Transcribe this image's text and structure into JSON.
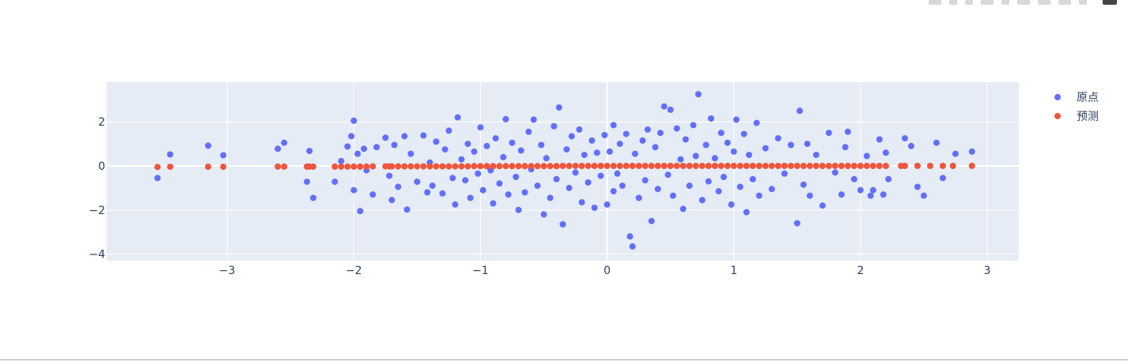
{
  "modebar": {
    "buttons": [
      "camera-icon",
      "zoom-icon",
      "pan-icon",
      "box-select-icon",
      "lasso-icon",
      "zoom-in-icon",
      "zoom-out-icon",
      "autoscale-icon",
      "reset-axes-icon",
      "plotly-logo-icon"
    ]
  },
  "colors": {
    "plot_bg": "#e5ecf6",
    "grid": "#ffffff",
    "series_1": "#636efa",
    "series_2": "#ef553b",
    "tick_text": "#2a3f5f"
  },
  "chart_data": {
    "type": "scatter",
    "title": "",
    "xlabel": "",
    "ylabel": "",
    "xlim": [
      -3.95,
      3.25
    ],
    "ylim": [
      -4.3,
      3.8
    ],
    "x_ticks": [
      -3,
      -2,
      -1,
      0,
      1,
      2,
      3
    ],
    "x_tick_labels": [
      "−3",
      "−2",
      "−1",
      "0",
      "1",
      "2",
      "3"
    ],
    "y_ticks": [
      2,
      0,
      -2,
      -4
    ],
    "y_tick_labels": [
      "2",
      "0",
      "−2",
      "−4"
    ],
    "grid": true,
    "legend_position": "top-right",
    "legend": [
      "原点",
      "预测"
    ],
    "series": [
      {
        "name": "原点",
        "color": "#636efa",
        "points": [
          [
            -3.55,
            -0.55
          ],
          [
            -3.45,
            0.52
          ],
          [
            -3.15,
            0.92
          ],
          [
            -3.03,
            0.48
          ],
          [
            -2.6,
            0.78
          ],
          [
            -2.55,
            1.05
          ],
          [
            -2.37,
            -0.72
          ],
          [
            -2.35,
            0.68
          ],
          [
            -2.32,
            -1.45
          ],
          [
            -2.15,
            -0.72
          ],
          [
            -2.1,
            0.22
          ],
          [
            -2.05,
            0.88
          ],
          [
            -2.02,
            1.35
          ],
          [
            -2.0,
            -1.1
          ],
          [
            -2.0,
            2.05
          ],
          [
            -1.97,
            0.55
          ],
          [
            -1.95,
            -2.05
          ],
          [
            -1.92,
            0.78
          ],
          [
            -1.9,
            -0.2
          ],
          [
            -1.85,
            -1.3
          ],
          [
            -1.82,
            0.85
          ],
          [
            -1.75,
            1.28
          ],
          [
            -1.72,
            -0.45
          ],
          [
            -1.7,
            -1.55
          ],
          [
            -1.68,
            0.95
          ],
          [
            -1.65,
            -0.95
          ],
          [
            -1.6,
            1.35
          ],
          [
            -1.58,
            -1.98
          ],
          [
            -1.55,
            0.55
          ],
          [
            -1.5,
            -0.72
          ],
          [
            -1.45,
            1.38
          ],
          [
            -1.42,
            -1.2
          ],
          [
            -1.4,
            0.15
          ],
          [
            -1.38,
            -0.9
          ],
          [
            -1.35,
            1.1
          ],
          [
            -1.3,
            -1.25
          ],
          [
            -1.28,
            0.75
          ],
          [
            -1.25,
            1.6
          ],
          [
            -1.22,
            -0.55
          ],
          [
            -1.2,
            -1.75
          ],
          [
            -1.18,
            2.2
          ],
          [
            -1.15,
            0.3
          ],
          [
            -1.12,
            -0.65
          ],
          [
            -1.1,
            1.0
          ],
          [
            -1.08,
            -1.45
          ],
          [
            -1.05,
            0.65
          ],
          [
            -1.02,
            -0.35
          ],
          [
            -1.0,
            1.75
          ],
          [
            -0.98,
            -1.1
          ],
          [
            -0.95,
            0.9
          ],
          [
            -0.92,
            -0.2
          ],
          [
            -0.9,
            -1.7
          ],
          [
            -0.88,
            1.25
          ],
          [
            -0.85,
            -0.8
          ],
          [
            -0.82,
            0.4
          ],
          [
            -0.8,
            2.12
          ],
          [
            -0.78,
            -1.3
          ],
          [
            -0.75,
            1.05
          ],
          [
            -0.72,
            -0.5
          ],
          [
            -0.7,
            -2.0
          ],
          [
            -0.68,
            0.7
          ],
          [
            -0.65,
            -1.2
          ],
          [
            -0.62,
            1.55
          ],
          [
            -0.6,
            -0.15
          ],
          [
            -0.58,
            2.1
          ],
          [
            -0.55,
            -0.9
          ],
          [
            -0.52,
            0.95
          ],
          [
            -0.5,
            -2.2
          ],
          [
            -0.48,
            0.35
          ],
          [
            -0.45,
            -1.45
          ],
          [
            -0.42,
            1.8
          ],
          [
            -0.4,
            -0.6
          ],
          [
            -0.38,
            2.65
          ],
          [
            -0.35,
            -2.65
          ],
          [
            -0.32,
            0.75
          ],
          [
            -0.3,
            -1.0
          ],
          [
            -0.28,
            1.35
          ],
          [
            -0.25,
            -0.3
          ],
          [
            -0.22,
            1.65
          ],
          [
            -0.2,
            -1.65
          ],
          [
            -0.18,
            0.5
          ],
          [
            -0.15,
            -0.75
          ],
          [
            -0.12,
            1.15
          ],
          [
            -0.1,
            -1.9
          ],
          [
            -0.08,
            0.6
          ],
          [
            -0.05,
            -0.45
          ],
          [
            -0.02,
            1.4
          ],
          [
            0.0,
            -1.75
          ],
          [
            0.02,
            0.65
          ],
          [
            0.05,
            -1.15
          ],
          [
            0.05,
            1.85
          ],
          [
            0.08,
            -0.35
          ],
          [
            0.1,
            1.0
          ],
          [
            0.12,
            -0.9
          ],
          [
            0.15,
            1.45
          ],
          [
            0.18,
            -3.2
          ],
          [
            0.2,
            -3.65
          ],
          [
            0.22,
            0.55
          ],
          [
            0.25,
            -1.45
          ],
          [
            0.28,
            1.15
          ],
          [
            0.3,
            -0.65
          ],
          [
            0.32,
            1.65
          ],
          [
            0.35,
            -2.5
          ],
          [
            0.38,
            0.85
          ],
          [
            0.4,
            -1.05
          ],
          [
            0.42,
            1.5
          ],
          [
            0.45,
            2.7
          ],
          [
            0.48,
            -0.4
          ],
          [
            0.5,
            2.55
          ],
          [
            0.52,
            -1.35
          ],
          [
            0.55,
            1.7
          ],
          [
            0.58,
            0.3
          ],
          [
            0.6,
            -1.95
          ],
          [
            0.62,
            1.2
          ],
          [
            0.65,
            -0.9
          ],
          [
            0.68,
            1.85
          ],
          [
            0.7,
            0.45
          ],
          [
            0.72,
            3.25
          ],
          [
            0.75,
            -1.55
          ],
          [
            0.78,
            0.95
          ],
          [
            0.8,
            -0.7
          ],
          [
            0.82,
            2.15
          ],
          [
            0.85,
            0.35
          ],
          [
            0.88,
            -1.15
          ],
          [
            0.9,
            1.5
          ],
          [
            0.92,
            -0.5
          ],
          [
            0.95,
            1.05
          ],
          [
            0.98,
            -1.75
          ],
          [
            1.0,
            0.65
          ],
          [
            1.02,
            2.1
          ],
          [
            1.05,
            -0.95
          ],
          [
            1.08,
            1.45
          ],
          [
            1.1,
            -2.1
          ],
          [
            1.12,
            0.5
          ],
          [
            1.15,
            -0.6
          ],
          [
            1.18,
            1.95
          ],
          [
            1.2,
            -1.35
          ],
          [
            1.25,
            0.8
          ],
          [
            1.3,
            -1.05
          ],
          [
            1.35,
            1.25
          ],
          [
            1.4,
            -0.35
          ],
          [
            1.45,
            0.95
          ],
          [
            1.5,
            -2.6
          ],
          [
            1.52,
            2.5
          ],
          [
            1.55,
            -0.85
          ],
          [
            1.58,
            1.0
          ],
          [
            1.6,
            -1.35
          ],
          [
            1.65,
            0.5
          ],
          [
            1.7,
            -1.8
          ],
          [
            1.75,
            1.5
          ],
          [
            1.8,
            -0.3
          ],
          [
            1.85,
            -1.3
          ],
          [
            1.88,
            0.85
          ],
          [
            1.9,
            1.55
          ],
          [
            1.95,
            -0.6
          ],
          [
            2.0,
            -1.1
          ],
          [
            2.05,
            0.45
          ],
          [
            2.08,
            -1.35
          ],
          [
            2.1,
            -1.1
          ],
          [
            2.15,
            1.2
          ],
          [
            2.18,
            -1.3
          ],
          [
            2.2,
            0.6
          ],
          [
            2.22,
            -0.6
          ],
          [
            2.35,
            1.25
          ],
          [
            2.4,
            0.9
          ],
          [
            2.45,
            -0.95
          ],
          [
            2.5,
            -1.35
          ],
          [
            2.6,
            1.05
          ],
          [
            2.65,
            -0.55
          ],
          [
            2.75,
            0.55
          ],
          [
            2.88,
            0.65
          ]
        ]
      },
      {
        "name": "预测",
        "color": "#ef553b",
        "points": [
          [
            -3.55,
            -0.05
          ],
          [
            -3.45,
            -0.04
          ],
          [
            -3.15,
            -0.04
          ],
          [
            -3.03,
            -0.04
          ],
          [
            -2.6,
            -0.03
          ],
          [
            -2.55,
            -0.03
          ],
          [
            -2.37,
            -0.03
          ],
          [
            -2.35,
            -0.03
          ],
          [
            -2.32,
            -0.03
          ],
          [
            -2.15,
            -0.03
          ],
          [
            -2.1,
            -0.03
          ],
          [
            -2.05,
            -0.03
          ],
          [
            -2.0,
            -0.03
          ],
          [
            -1.95,
            -0.03
          ],
          [
            -1.9,
            -0.03
          ],
          [
            -1.85,
            -0.02
          ],
          [
            -1.75,
            -0.02
          ],
          [
            -1.72,
            -0.02
          ],
          [
            -1.7,
            -0.02
          ],
          [
            -1.65,
            -0.02
          ],
          [
            -1.6,
            -0.02
          ],
          [
            -1.55,
            -0.02
          ],
          [
            -1.5,
            -0.02
          ],
          [
            -1.45,
            -0.02
          ],
          [
            -1.4,
            -0.02
          ],
          [
            -1.35,
            -0.02
          ],
          [
            -1.3,
            -0.02
          ],
          [
            -1.25,
            -0.02
          ],
          [
            -1.2,
            -0.02
          ],
          [
            -1.15,
            -0.02
          ],
          [
            -1.1,
            -0.02
          ],
          [
            -1.05,
            -0.01
          ],
          [
            -1.0,
            -0.01
          ],
          [
            -0.95,
            -0.01
          ],
          [
            -0.9,
            -0.01
          ],
          [
            -0.85,
            -0.01
          ],
          [
            -0.8,
            -0.01
          ],
          [
            -0.75,
            -0.01
          ],
          [
            -0.7,
            -0.01
          ],
          [
            -0.65,
            -0.01
          ],
          [
            -0.6,
            -0.01
          ],
          [
            -0.55,
            -0.01
          ],
          [
            -0.5,
            -0.01
          ],
          [
            -0.45,
            -0.01
          ],
          [
            -0.4,
            -0.01
          ],
          [
            -0.35,
            0.0
          ],
          [
            -0.3,
            0.0
          ],
          [
            -0.25,
            0.0
          ],
          [
            -0.2,
            0.0
          ],
          [
            -0.15,
            0.0
          ],
          [
            -0.1,
            0.0
          ],
          [
            -0.05,
            0.0
          ],
          [
            0.0,
            0.0
          ],
          [
            0.05,
            0.0
          ],
          [
            0.1,
            0.0
          ],
          [
            0.15,
            0.0
          ],
          [
            0.2,
            0.0
          ],
          [
            0.25,
            0.0
          ],
          [
            0.3,
            0.0
          ],
          [
            0.35,
            0.0
          ],
          [
            0.4,
            0.0
          ],
          [
            0.45,
            0.0
          ],
          [
            0.5,
            0.0
          ],
          [
            0.55,
            0.0
          ],
          [
            0.6,
            0.0
          ],
          [
            0.65,
            0.0
          ],
          [
            0.7,
            0.0
          ],
          [
            0.75,
            0.0
          ],
          [
            0.8,
            0.0
          ],
          [
            0.85,
            0.0
          ],
          [
            0.9,
            0.0
          ],
          [
            0.95,
            0.0
          ],
          [
            1.0,
            0.0
          ],
          [
            1.05,
            0.0
          ],
          [
            1.1,
            0.0
          ],
          [
            1.15,
            0.0
          ],
          [
            1.2,
            0.0
          ],
          [
            1.25,
            0.0
          ],
          [
            1.3,
            0.0
          ],
          [
            1.35,
            0.0
          ],
          [
            1.4,
            0.0
          ],
          [
            1.45,
            0.0
          ],
          [
            1.5,
            0.0
          ],
          [
            1.55,
            0.0
          ],
          [
            1.6,
            0.0
          ],
          [
            1.65,
            0.0
          ],
          [
            1.7,
            0.0
          ],
          [
            1.75,
            0.0
          ],
          [
            1.8,
            0.0
          ],
          [
            1.85,
            0.0
          ],
          [
            1.9,
            0.0
          ],
          [
            1.95,
            0.0
          ],
          [
            2.0,
            0.0
          ],
          [
            2.05,
            0.0
          ],
          [
            2.1,
            0.0
          ],
          [
            2.15,
            0.0
          ],
          [
            2.2,
            0.0
          ],
          [
            2.32,
            0.0
          ],
          [
            2.35,
            0.0
          ],
          [
            2.45,
            0.0
          ],
          [
            2.55,
            0.0
          ],
          [
            2.65,
            0.0
          ],
          [
            2.73,
            0.0
          ],
          [
            2.88,
            0.0
          ]
        ]
      }
    ]
  }
}
